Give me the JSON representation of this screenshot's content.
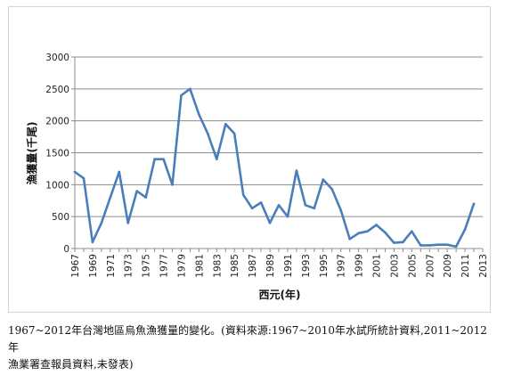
{
  "chart_data": {
    "type": "line",
    "title": "",
    "xlabel": "西元(年)",
    "ylabel": "漁獲量(千尾)",
    "ylim": [
      0,
      3000
    ],
    "yticks": [
      0,
      500,
      1000,
      1500,
      2000,
      2500,
      3000
    ],
    "xticks": [
      "1967",
      "1969",
      "1971",
      "1973",
      "1975",
      "1977",
      "1979",
      "1981",
      "1983",
      "1985",
      "1987",
      "1989",
      "1991",
      "1993",
      "1995",
      "1997",
      "1999",
      "2001",
      "2003",
      "2005",
      "2007",
      "2009",
      "2011",
      "2013"
    ],
    "grid": "horizontal",
    "legend": "none",
    "line_color": "#4a7ebb",
    "x": [
      1967,
      1968,
      1969,
      1970,
      1971,
      1972,
      1973,
      1974,
      1975,
      1976,
      1977,
      1978,
      1979,
      1980,
      1981,
      1982,
      1983,
      1984,
      1985,
      1986,
      1987,
      1988,
      1989,
      1990,
      1991,
      1992,
      1993,
      1994,
      1995,
      1996,
      1997,
      1998,
      1999,
      2000,
      2001,
      2002,
      2003,
      2004,
      2005,
      2006,
      2007,
      2008,
      2009,
      2010,
      2011,
      2012
    ],
    "series": [
      {
        "values": [
          1200,
          1100,
          100,
          400,
          800,
          1200,
          400,
          900,
          800,
          1400,
          1400,
          1000,
          2400,
          2500,
          2100,
          1800,
          1400,
          1950,
          1800,
          840,
          630,
          720,
          400,
          680,
          500,
          1220,
          680,
          630,
          1080,
          930,
          600,
          150,
          240,
          270,
          370,
          250,
          90,
          100,
          270,
          50,
          50,
          60,
          60,
          30,
          300,
          700
        ]
      }
    ]
  },
  "caption": {
    "line1": "1967~2012年台灣地區烏魚漁獲量的變化。(資料來源:1967~2010年水試所統計資料,2011~2012年",
    "line2": "漁業署查報員資料,未發表)"
  }
}
